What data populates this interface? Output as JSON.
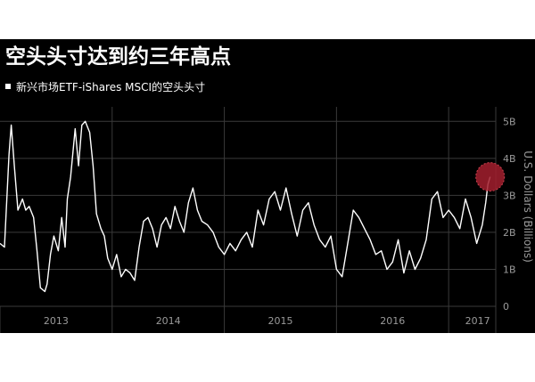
{
  "colors": {
    "background": "#000000",
    "line": "#ffffff",
    "grid": "#3a3a3a",
    "axis_text": "#9a9a9a",
    "highlight": "#a31f2e"
  },
  "chart_data": {
    "type": "line",
    "title": "空头头寸达到约三年高点",
    "legend": [
      "新兴市场ETF-iShares MSCI的空头头寸"
    ],
    "ylabel": "U.S. Dollars (Billions)",
    "ylim": [
      0,
      5.2
    ],
    "yticks": [
      0,
      1,
      2,
      3,
      4,
      5
    ],
    "ytick_labels": [
      "0",
      "1B",
      "2B",
      "3B",
      "4B",
      "5B"
    ],
    "xlim": [
      2013.0,
      2017.42
    ],
    "x_labels": [
      "2013",
      "2014",
      "2015",
      "2016",
      "2017"
    ],
    "grid": true,
    "highlight_point": {
      "x": 2017.37,
      "y": 3.5
    },
    "series": [
      {
        "x": [
          2013.0,
          2013.04,
          2013.08,
          2013.1,
          2013.13,
          2013.16,
          2013.2,
          2013.23,
          2013.26,
          2013.3,
          2013.33,
          2013.36,
          2013.4,
          2013.42,
          2013.45,
          2013.48,
          2013.52,
          2013.55,
          2013.58,
          2013.6,
          2013.63,
          2013.67,
          2013.7,
          2013.73,
          2013.76,
          2013.8,
          2013.83,
          2013.86,
          2013.9,
          2013.93,
          2013.96,
          2014.0,
          2014.04,
          2014.08,
          2014.12,
          2014.16,
          2014.2,
          2014.24,
          2014.28,
          2014.32,
          2014.36,
          2014.4,
          2014.44,
          2014.48,
          2014.52,
          2014.56,
          2014.6,
          2014.64,
          2014.68,
          2014.72,
          2014.76,
          2014.8,
          2014.85,
          2014.9,
          2014.95,
          2015.0,
          2015.05,
          2015.1,
          2015.15,
          2015.2,
          2015.25,
          2015.3,
          2015.35,
          2015.4,
          2015.45,
          2015.5,
          2015.55,
          2015.6,
          2015.65,
          2015.7,
          2015.75,
          2015.8,
          2015.85,
          2015.9,
          2015.95,
          2016.0,
          2016.05,
          2016.1,
          2016.15,
          2016.2,
          2016.25,
          2016.3,
          2016.35,
          2016.4,
          2016.45,
          2016.5,
          2016.55,
          2016.6,
          2016.65,
          2016.7,
          2016.75,
          2016.8,
          2016.85,
          2016.9,
          2016.95,
          2017.0,
          2017.05,
          2017.1,
          2017.15,
          2017.2,
          2017.25,
          2017.3,
          2017.33,
          2017.35,
          2017.37
        ],
        "y": [
          1.7,
          1.6,
          4.1,
          4.9,
          3.7,
          2.6,
          2.9,
          2.6,
          2.7,
          2.4,
          1.5,
          0.5,
          0.4,
          0.6,
          1.4,
          1.9,
          1.5,
          2.4,
          1.6,
          2.9,
          3.5,
          4.8,
          3.8,
          4.9,
          5.0,
          4.7,
          3.8,
          2.5,
          2.1,
          1.9,
          1.3,
          1.0,
          1.4,
          0.8,
          1.0,
          0.9,
          0.7,
          1.6,
          2.3,
          2.4,
          2.1,
          1.6,
          2.2,
          2.4,
          2.1,
          2.7,
          2.3,
          2.0,
          2.8,
          3.2,
          2.6,
          2.3,
          2.2,
          2.0,
          1.6,
          1.4,
          1.7,
          1.5,
          1.8,
          2.0,
          1.6,
          2.6,
          2.2,
          2.9,
          3.1,
          2.6,
          3.2,
          2.5,
          1.9,
          2.6,
          2.8,
          2.2,
          1.8,
          1.6,
          1.9,
          1.0,
          0.8,
          1.7,
          2.6,
          2.4,
          2.1,
          1.8,
          1.4,
          1.5,
          1.0,
          1.2,
          1.8,
          0.9,
          1.5,
          1.0,
          1.3,
          1.8,
          2.9,
          3.1,
          2.4,
          2.6,
          2.4,
          2.1,
          2.9,
          2.4,
          1.7,
          2.2,
          2.8,
          3.3,
          3.5
        ]
      }
    ]
  }
}
